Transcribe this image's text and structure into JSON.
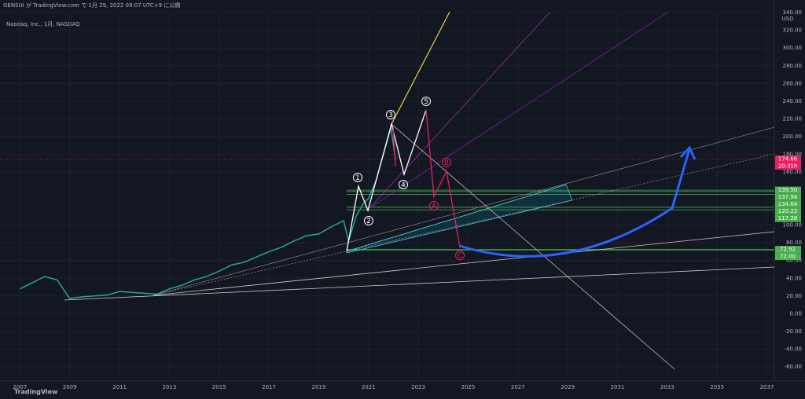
{
  "chart_data": {
    "type": "line",
    "title": "GENSUI が TradingView.com で 1月 29, 2022 09:07 UTC+9 に公開",
    "subtitle": "Nasdaq, Inc., 1月, NASDAQ",
    "currency": "USD",
    "brand": "TradingView",
    "series": [
      {
        "name": "Nasdaq, Inc.",
        "color": "#26a69a",
        "x": [
          2007.0,
          2007.5,
          2008.0,
          2008.5,
          2009.0,
          2009.5,
          2010.0,
          2010.5,
          2011.0,
          2011.5,
          2012.0,
          2012.5,
          2013.0,
          2013.5,
          2014.0,
          2014.5,
          2015.0,
          2015.5,
          2016.0,
          2016.5,
          2017.0,
          2017.5,
          2018.0,
          2018.5,
          2019.0,
          2019.5,
          2020.0,
          2020.2,
          2020.5,
          2020.8,
          2021.0,
          2021.3,
          2021.6,
          2021.9,
          2022.08
        ],
        "values": [
          28,
          35,
          42,
          38,
          17,
          19,
          20,
          21,
          25,
          24,
          23,
          22,
          28,
          32,
          38,
          42,
          48,
          55,
          58,
          64,
          70,
          75,
          82,
          88,
          90,
          98,
          105,
          82,
          110,
          125,
          130,
          150,
          180,
          210,
          175
        ]
      }
    ],
    "xlim": [
      2006.2,
      2037.3
    ],
    "xticks": [
      2007,
      2009,
      2011,
      2013,
      2015,
      2017,
      2019,
      2021,
      2023,
      2025,
      2027,
      2029,
      2031,
      2033,
      2035,
      2037
    ],
    "ylim": [
      -76,
      341
    ],
    "yticks": [
      {
        "value": -60,
        "label": "-60.00"
      },
      {
        "value": -40,
        "label": "-40.00"
      },
      {
        "value": -20,
        "label": "-20.00"
      },
      {
        "value": 0,
        "label": "0.00"
      },
      {
        "value": 20,
        "label": "20.00"
      },
      {
        "value": 40,
        "label": "40.00"
      },
      {
        "value": 60,
        "label": "60.00"
      },
      {
        "value": 80,
        "label": "80.00"
      },
      {
        "value": 100,
        "label": "100.00"
      },
      {
        "value": 160,
        "label": "160.00"
      },
      {
        "value": 180,
        "label": "180.00"
      },
      {
        "value": 200,
        "label": "200.00"
      },
      {
        "value": 220,
        "label": "220.00"
      },
      {
        "value": 240,
        "label": "240.00"
      },
      {
        "value": 260,
        "label": "260.00"
      },
      {
        "value": 280,
        "label": "280.00"
      },
      {
        "value": 300,
        "label": "300.00"
      },
      {
        "value": 320,
        "label": "320.00"
      },
      {
        "value": 340,
        "label": "340.00"
      }
    ],
    "price_tags": [
      {
        "value": 174.66,
        "label": "174.66",
        "color": "#e91e63"
      },
      {
        "value": 139.5,
        "label": "139.50",
        "color": "#4caf50"
      },
      {
        "value": 137.94,
        "label": "137.94",
        "color": "#4caf50"
      },
      {
        "value": 134.64,
        "label": "134.64",
        "color": "#4caf50"
      },
      {
        "value": 120.23,
        "label": "120.23",
        "color": "#4caf50"
      },
      {
        "value": 117.28,
        "label": "117.28",
        "color": "#4caf50"
      },
      {
        "value": 72.52,
        "label": "72.52",
        "color": "#4caf50"
      },
      {
        "value": 72,
        "label": "72.00",
        "color": "#4caf50"
      }
    ],
    "countdown": "20:31h",
    "wave_labels": [
      "1",
      "2",
      "3",
      "4",
      "5",
      "A",
      "B",
      "C"
    ]
  }
}
